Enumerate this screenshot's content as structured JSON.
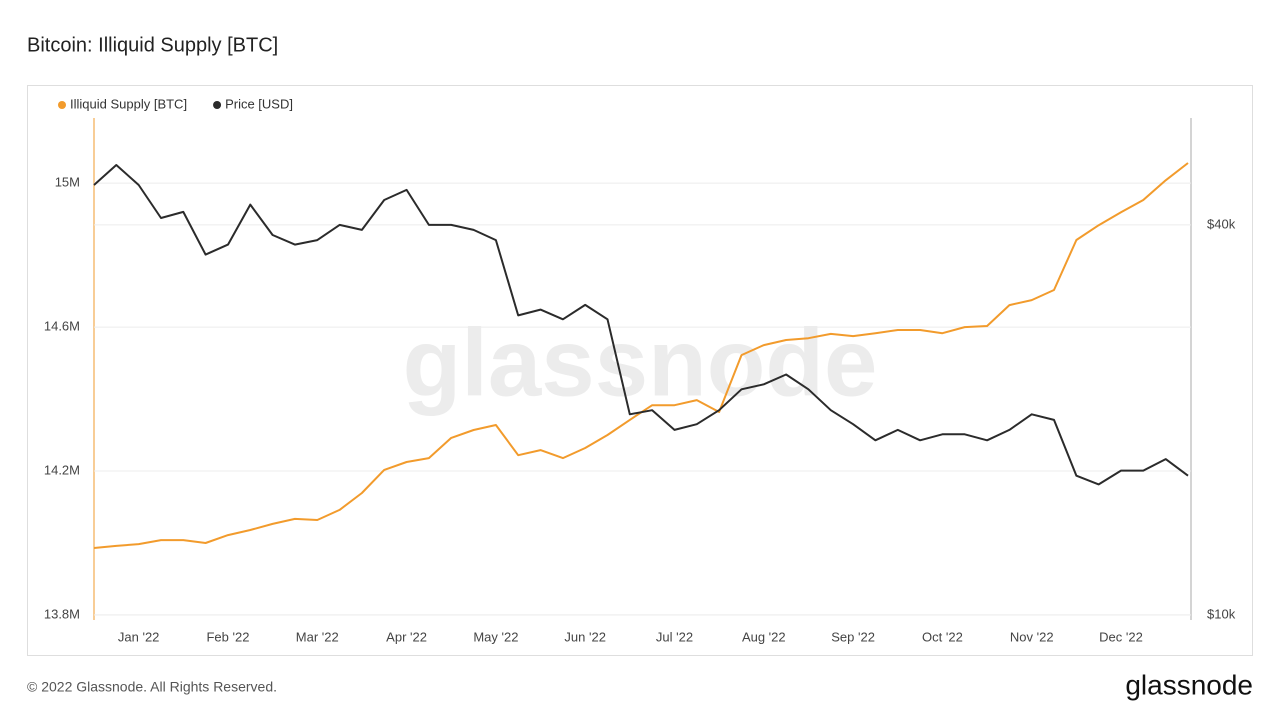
{
  "chart_data": {
    "type": "line",
    "title": "Bitcoin: Illiquid Supply [BTC]",
    "watermark": "glassnode",
    "categories": [
      null,
      null,
      "Jan '22",
      null,
      null,
      null,
      "Feb '22",
      null,
      null,
      null,
      "Mar '22",
      null,
      null,
      null,
      "Apr '22",
      null,
      null,
      null,
      "May '22",
      null,
      null,
      null,
      "Jun '22",
      null,
      null,
      null,
      "Jul '22",
      null,
      null,
      null,
      "Aug '22",
      null,
      null,
      null,
      "Sep '22",
      null,
      null,
      null,
      "Oct '22",
      null,
      null,
      null,
      "Nov '22",
      null,
      null,
      null,
      "Dec '22",
      null,
      null,
      null
    ],
    "series": [
      {
        "name": "Illiquid Supply [BTC]",
        "color": "#f29b2c",
        "values": [
          13986000,
          13992000,
          13997000,
          14008000,
          14008000,
          14000000,
          14022000,
          14036000,
          14053000,
          14067000,
          14064000,
          14092000,
          14139000,
          14203000,
          14225000,
          14236000,
          14292000,
          14314000,
          14328000,
          14244000,
          14258000,
          14236000,
          14264000,
          14300000,
          14342000,
          14383000,
          14383000,
          14397000,
          14364000,
          14522000,
          14550000,
          14564000,
          14569000,
          14581000,
          14575000,
          14583000,
          14592000,
          14592000,
          14583000,
          14600000,
          14603000,
          14661000,
          14675000,
          14703000,
          14842000,
          14883000,
          14919000,
          14953000,
          15008000,
          15056000
        ]
      },
      {
        "name": "Price [USD]",
        "color": "#2b2b2b",
        "axis": "y2",
        "values": [
          46100,
          49500,
          46100,
          41000,
          41900,
          36000,
          37300,
          43000,
          38600,
          37300,
          37900,
          40000,
          39300,
          43700,
          45300,
          40000,
          40000,
          39300,
          37900,
          29000,
          29600,
          28600,
          30100,
          28600,
          20400,
          20700,
          19300,
          19700,
          20700,
          22300,
          22700,
          23500,
          22300,
          20700,
          19700,
          18600,
          19300,
          18600,
          19000,
          19000,
          18600,
          19300,
          20400,
          20000,
          16400,
          15900,
          16700,
          16700,
          17400,
          16400
        ]
      }
    ],
    "ylim": [
      13786000,
      15181000
    ],
    "yticks": [
      {
        "value": 13800000,
        "label": "13.8M"
      },
      {
        "value": 14200000,
        "label": "14.2M"
      },
      {
        "value": 14600000,
        "label": "14.6M"
      },
      {
        "value": 15000000,
        "label": "15M"
      }
    ],
    "y2lim": [
      9820,
      58500
    ],
    "y2ticks": [
      {
        "value": 10000,
        "label": "$10k"
      },
      {
        "value": 40000,
        "label": "$40k"
      }
    ],
    "y2log": true,
    "grid": true,
    "legend": "top-left"
  },
  "footer": {
    "copyright": "© 2022 Glassnode. All Rights Reserved.",
    "logo": "glassnode"
  }
}
